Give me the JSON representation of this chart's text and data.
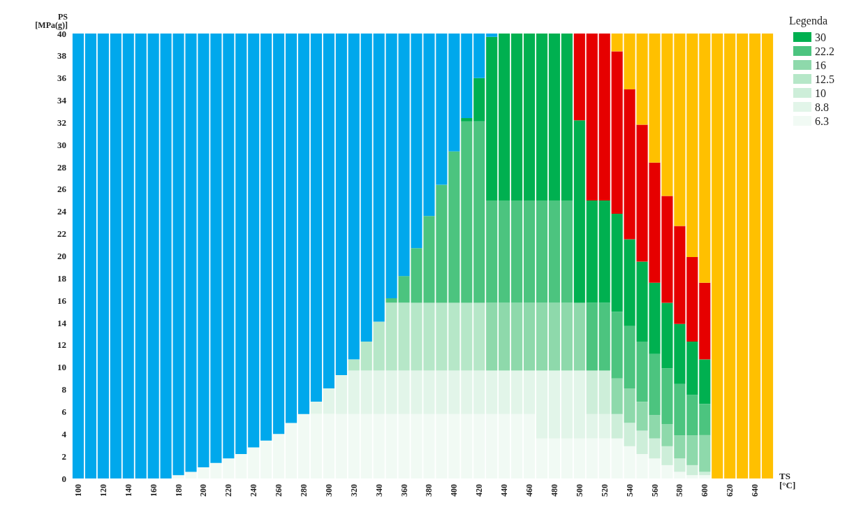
{
  "chart_data": {
    "type": "bar",
    "stacked": true,
    "xlabel": "TS\n[°C]",
    "ylabel": "PS\n[MPa(g)]",
    "legend_title": "Legenda",
    "legend": "top right",
    "grid": false,
    "categories": [
      "100",
      null,
      "120",
      null,
      "140",
      null,
      "160",
      null,
      "180",
      null,
      "200",
      null,
      "220",
      null,
      "240",
      null,
      "260",
      null,
      "280",
      null,
      "300",
      null,
      "320",
      null,
      "340",
      null,
      "360",
      null,
      "380",
      null,
      "400",
      null,
      "420",
      null,
      "440",
      null,
      "460",
      null,
      "480",
      null,
      "500",
      null,
      "520",
      null,
      "540",
      null,
      "560",
      null,
      "580",
      null,
      "600",
      null,
      "620",
      null,
      "640",
      null
    ],
    "ylim": [
      0,
      40
    ],
    "yticks": [
      0,
      2,
      4,
      6,
      8,
      10,
      12,
      14,
      16,
      18,
      20,
      22,
      24,
      26,
      28,
      30,
      32,
      34,
      36,
      38,
      40
    ],
    "series": [
      {
        "name": "6.3",
        "color": "#f1faf4",
        "values": [
          0,
          0,
          0,
          0,
          null,
          null,
          null,
          null,
          0.3,
          0.6,
          1.0,
          1.4,
          1.8,
          2.2,
          2.8,
          3.4,
          4.0,
          5.0,
          5.8,
          5.8,
          5.8,
          5.8,
          5.8,
          5.8,
          5.8,
          5.8,
          5.8,
          5.8,
          5.8,
          5.8,
          5.8,
          5.8,
          5.8,
          5.8,
          5.8,
          5.8,
          5.8,
          3.6,
          3.6,
          3.6,
          3.6,
          3.6,
          3.6,
          3.6,
          2.9,
          2.2,
          1.8,
          1.2,
          0.6,
          0.3,
          0.3,
          0,
          0,
          0,
          0,
          0
        ]
      },
      {
        "name": "8.8",
        "color": "#e2f5e9",
        "values": [
          0,
          0,
          0,
          0,
          0,
          0,
          0,
          0,
          0,
          0,
          0,
          0,
          0,
          0,
          0,
          0,
          0,
          0,
          0,
          1.1,
          2.3,
          3.5,
          3.9,
          3.9,
          3.9,
          3.9,
          3.9,
          3.9,
          3.9,
          3.9,
          3.9,
          3.9,
          3.9,
          3.9,
          3.9,
          3.9,
          3.9,
          6.1,
          6.1,
          6.1,
          6.1,
          2.2,
          2.2,
          0,
          0,
          0,
          0,
          0,
          0,
          0,
          0,
          0,
          0,
          0,
          0,
          0
        ]
      },
      {
        "name": "10",
        "color": "#cdeed9",
        "values": [
          0,
          0,
          0,
          0,
          0,
          0,
          0,
          0,
          0,
          0,
          0,
          0,
          0,
          0,
          0,
          0,
          0,
          0,
          0,
          0,
          0,
          0,
          0,
          0,
          0,
          0,
          0,
          0,
          0,
          0,
          0,
          0,
          0,
          0,
          0,
          0,
          0,
          0,
          0,
          0,
          0,
          3.9,
          3.9,
          2.2,
          2.1,
          2.1,
          1.8,
          1.7,
          1.2,
          0.9,
          0.3,
          0,
          0,
          0,
          0,
          0
        ]
      },
      {
        "name": "12.5",
        "color": "#b6e7c8",
        "values": [
          0,
          0,
          0,
          0,
          0,
          0,
          0,
          0,
          0,
          0,
          0,
          0,
          0,
          0,
          0,
          0,
          0,
          0,
          0,
          0,
          0,
          0,
          1.0,
          2.6,
          4.4,
          6.1,
          6.1,
          6.1,
          6.1,
          6.1,
          6.1,
          6.1,
          6.1,
          0,
          0,
          0,
          0,
          0,
          0,
          0,
          0,
          0,
          0,
          0,
          0,
          0,
          0,
          0,
          0,
          0,
          0,
          0,
          0,
          0,
          0,
          0
        ]
      },
      {
        "name": "16",
        "color": "#8ed9ab",
        "values": [
          0,
          0,
          0,
          0,
          0,
          0,
          0,
          0,
          0,
          0,
          0,
          0,
          0,
          0,
          0,
          0,
          0,
          0,
          0,
          0,
          0,
          0,
          0,
          0,
          0,
          0,
          0,
          0,
          0,
          0,
          0,
          0,
          0,
          6.1,
          6.1,
          6.1,
          6.1,
          6.1,
          6.1,
          6.1,
          6.1,
          0,
          0,
          3.2,
          3.1,
          2.6,
          2.1,
          2.0,
          2.1,
          2.7,
          3.3,
          0,
          0,
          0,
          0,
          0
        ]
      },
      {
        "name": "22.2",
        "color": "#4cc47f",
        "values": [
          0,
          0,
          0,
          0,
          0,
          0,
          0,
          0,
          0,
          0,
          0,
          0,
          0,
          0,
          0,
          0,
          0,
          0,
          0,
          0,
          0,
          0,
          0,
          0,
          0,
          0.4,
          2.4,
          4.9,
          7.8,
          10.6,
          13.6,
          16.3,
          16.3,
          9.2,
          9.2,
          9.2,
          9.2,
          9.2,
          9.2,
          9.2,
          0,
          6.1,
          6.1,
          6.0,
          5.6,
          5.4,
          5.5,
          5.0,
          4.6,
          3.6,
          2.8,
          0,
          0,
          0,
          0,
          0
        ]
      },
      {
        "name": "30",
        "color": "#00b050",
        "values": [
          0,
          0,
          0,
          0,
          0,
          0,
          0,
          0,
          0,
          0,
          0,
          0,
          0,
          0,
          0,
          0,
          0,
          0,
          0,
          0,
          0,
          0,
          0,
          0,
          0,
          0,
          0,
          0,
          0,
          0,
          0,
          0.3,
          3.9,
          14.7,
          15.0,
          15.0,
          15.0,
          15.0,
          15.0,
          15.0,
          16.4,
          9.2,
          9.2,
          8.8,
          7.8,
          7.2,
          6.4,
          5.9,
          5.4,
          4.8,
          4.0,
          0,
          0,
          0,
          0,
          0
        ]
      },
      {
        "color": "#e60000",
        "values": [
          0,
          0,
          0,
          0,
          0,
          0,
          0,
          0,
          0,
          0,
          0,
          0,
          0,
          0,
          0,
          0,
          0,
          0,
          0,
          0,
          0,
          0,
          0,
          0,
          0,
          0,
          0,
          0,
          0,
          0,
          0,
          0,
          0,
          0,
          0,
          0,
          0,
          0,
          0,
          0,
          7.8,
          15.0,
          15.0,
          14.6,
          13.5,
          12.3,
          10.8,
          9.6,
          8.8,
          7.6,
          6.9,
          0,
          0,
          0,
          0,
          0
        ]
      },
      {
        "color": "#00a8ec",
        "values": [
          40,
          40,
          40,
          40,
          40,
          40,
          40,
          40,
          39.7,
          39.4,
          39.0,
          38.6,
          38.2,
          37.8,
          37.2,
          36.6,
          36.0,
          35.0,
          34.2,
          33.1,
          31.9,
          30.7,
          29.3,
          27.7,
          25.9,
          23.8,
          21.8,
          19.3,
          16.4,
          13.6,
          10.6,
          7.6,
          4.0,
          0.3,
          0,
          0,
          0,
          0,
          0,
          0,
          0,
          0,
          0,
          0,
          0,
          0,
          0,
          0,
          0,
          0,
          0,
          0,
          0,
          0,
          0,
          0
        ]
      },
      {
        "color": "#ffc000",
        "values": [
          0,
          0,
          0,
          0,
          0,
          0,
          0,
          0,
          0,
          0,
          0,
          0,
          0,
          0,
          0,
          0,
          0,
          0,
          0,
          0,
          0,
          0,
          0,
          0,
          0,
          0,
          0,
          0,
          0,
          0,
          0,
          0,
          0,
          0,
          0,
          0,
          0,
          0,
          0,
          0,
          0,
          0,
          0,
          1.6,
          5.0,
          8.2,
          11.6,
          14.6,
          17.3,
          20.1,
          22.4,
          40,
          40,
          40,
          40,
          40
        ]
      }
    ]
  }
}
